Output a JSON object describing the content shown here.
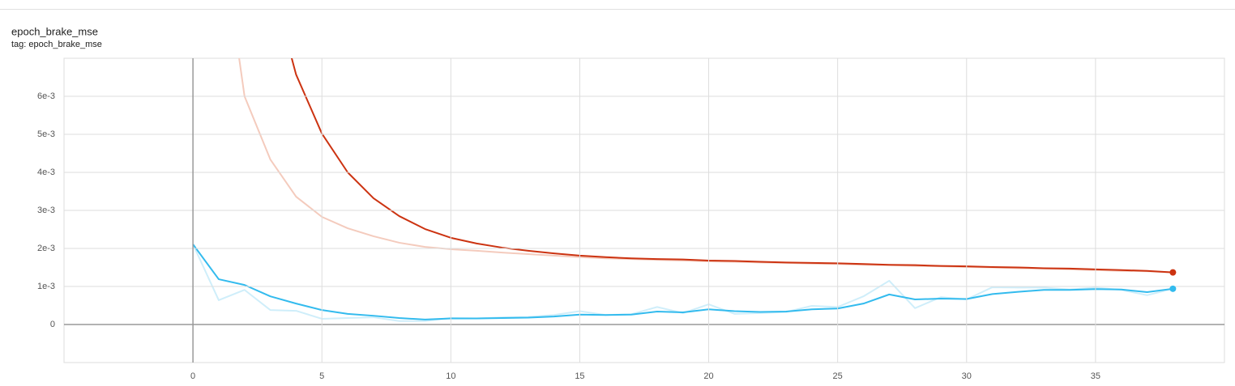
{
  "chart_data": {
    "type": "line",
    "title": "epoch_brake_mse",
    "subtitle": "tag: epoch_brake_mse",
    "x": [
      0,
      1,
      2,
      3,
      4,
      5,
      6,
      7,
      8,
      9,
      10,
      11,
      12,
      13,
      14,
      15,
      16,
      17,
      18,
      19,
      20,
      21,
      22,
      23,
      24,
      25,
      26,
      27,
      28,
      29,
      30,
      31,
      32,
      33,
      34,
      35,
      36,
      37,
      38
    ],
    "series": [
      {
        "color": "#f4cbbd",
        "end_marker": false,
        "values": [
          null,
          0.0108,
          0.006,
          0.00434,
          0.00336,
          0.00283,
          0.00253,
          0.00232,
          0.00215,
          0.00204,
          0.00198,
          0.00194,
          0.00189,
          0.00185,
          0.00181,
          0.00177,
          0.00174,
          0.00172,
          0.0017,
          0.00168,
          0.00166,
          0.00165,
          0.00163,
          0.00162,
          0.0016,
          0.00159,
          0.00157,
          0.00156,
          0.00154,
          0.00153,
          0.00151,
          0.0015,
          0.00148,
          0.00147,
          0.00145,
          0.00143,
          0.00141,
          0.0014,
          0.00137
        ]
      },
      {
        "color": "#cfeefa",
        "end_marker": false,
        "values": [
          0.00211,
          0.00064,
          0.00091,
          0.00038,
          0.00036,
          0.00015,
          0.00017,
          0.00019,
          9e-05,
          9e-05,
          0.00017,
          0.00016,
          0.00019,
          0.0002,
          0.00025,
          0.00035,
          0.00025,
          0.00027,
          0.00046,
          0.0003,
          0.00053,
          0.00028,
          0.0003,
          0.00033,
          0.00049,
          0.00046,
          0.00074,
          0.00115,
          0.00043,
          0.00072,
          0.00066,
          0.00098,
          0.00097,
          0.00097,
          0.00092,
          0.00097,
          0.00091,
          0.00077,
          0.00094
        ]
      },
      {
        "color": "#cc3311",
        "end_marker": true,
        "values": [
          null,
          null,
          null,
          0.0091,
          0.00657,
          0.00502,
          0.004,
          0.00332,
          0.00285,
          0.00251,
          0.00228,
          0.00213,
          0.00202,
          0.00194,
          0.00187,
          0.00181,
          0.00177,
          0.00174,
          0.00172,
          0.00171,
          0.00168,
          0.00167,
          0.00165,
          0.00163,
          0.00162,
          0.00161,
          0.00159,
          0.00157,
          0.00156,
          0.00154,
          0.00153,
          0.00151,
          0.0015,
          0.00148,
          0.00147,
          0.00145,
          0.00143,
          0.00141,
          0.00137
        ]
      },
      {
        "color": "#33bbee",
        "end_marker": true,
        "values": [
          0.00211,
          0.00119,
          0.00104,
          0.00074,
          0.00055,
          0.00038,
          0.00028,
          0.00023,
          0.00017,
          0.00013,
          0.00016,
          0.00016,
          0.00017,
          0.00018,
          0.00021,
          0.00026,
          0.00025,
          0.00026,
          0.00034,
          0.00032,
          0.0004,
          0.00035,
          0.00033,
          0.00034,
          0.0004,
          0.00042,
          0.00055,
          0.00079,
          0.00066,
          0.00068,
          0.00067,
          0.0008,
          0.00086,
          0.00091,
          0.00091,
          0.00093,
          0.00092,
          0.00085,
          0.00094
        ]
      }
    ],
    "xlim": [
      -5,
      40
    ],
    "ylim": [
      -0.001,
      0.007
    ],
    "xticks": [
      0,
      5,
      10,
      15,
      20,
      25,
      30,
      35
    ],
    "yticks": [
      0,
      {
        "value": 0.001,
        "label": "1e-3"
      },
      {
        "value": 0.002,
        "label": "2e-3"
      },
      {
        "value": 0.003,
        "label": "3e-3"
      },
      {
        "value": 0.004,
        "label": "4e-3"
      },
      {
        "value": 0.005,
        "label": "5e-3"
      },
      {
        "value": 0.006,
        "label": "6e-3"
      }
    ],
    "grid": true
  }
}
